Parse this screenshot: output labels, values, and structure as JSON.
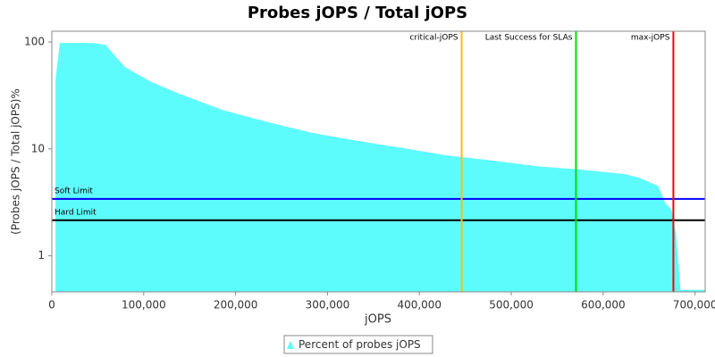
{
  "chart_data": {
    "type": "area",
    "title": "Probes jOPS / Total jOPS",
    "x_label": "jOPS",
    "y_label": "(Probes jOPS / Total jOPS)%",
    "log_y": true,
    "x": [
      4000,
      8700,
      45700,
      58300,
      79700,
      108800,
      138000,
      186600,
      235200,
      283800,
      332400,
      381000,
      429500,
      478100,
      526700,
      575300,
      623900,
      638500,
      659900,
      667600,
      674400,
      679300,
      684200,
      710400
    ],
    "series": [
      {
        "name": "Percent of probes jOPS",
        "color": "#5dfcfc",
        "values": [
          44,
          98,
          98,
          94,
          58,
          42,
          33,
          23,
          17.8,
          14.1,
          11.9,
          10.2,
          8.7,
          7.8,
          6.9,
          6.4,
          5.8,
          5.4,
          4.5,
          3.1,
          2.7,
          1.6,
          0.48,
          0.48
        ]
      }
    ],
    "xlim": [
      0,
      711000
    ],
    "xticks": [
      0,
      {
        "value": 100000,
        "label": "100,000"
      },
      {
        "value": 200000,
        "label": "200,000"
      },
      {
        "value": 300000,
        "label": "300,000"
      },
      {
        "value": 400000,
        "label": "400,000"
      },
      {
        "value": 500000,
        "label": "500,000"
      },
      {
        "value": 600000,
        "label": "600,000"
      },
      {
        "value": 700000,
        "label": "700,000"
      }
    ],
    "ylim": [
      0.46,
      126
    ],
    "yticks": [
      1,
      10,
      100
    ],
    "markers": [
      {
        "label": "critical-jOPS",
        "value": 446000,
        "color": "#ffc000"
      },
      {
        "label": "Last Success for SLAs",
        "value": 570400,
        "color": "#00e000"
      },
      {
        "label": "max-jOPS",
        "value": 676400,
        "color": "#ff0000"
      }
    ],
    "limits": [
      {
        "label": "Soft Limit",
        "value": 3.4,
        "color": "#0000ff"
      },
      {
        "label": "Hard Limit",
        "value": 2.15,
        "color": "#000000"
      }
    ]
  }
}
